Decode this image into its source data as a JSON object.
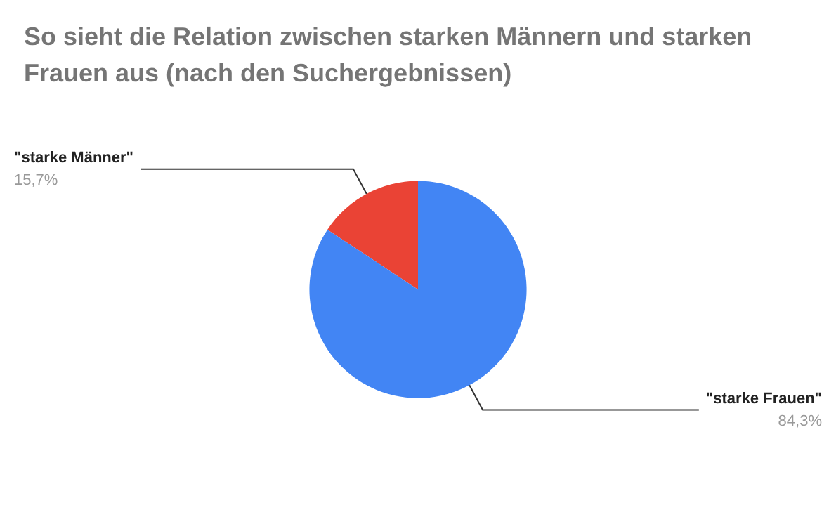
{
  "chart_data": {
    "type": "pie",
    "title": "So sieht die Relation zwischen starken Männern und starken Frauen aus (nach den Suchergebnissen)",
    "categories": [
      "\"starke Männer\"",
      "\"starke Frauen\""
    ],
    "values": [
      15.7,
      84.3
    ],
    "colors": [
      "#ea4335",
      "#4285f4"
    ],
    "value_labels": [
      "15,7%",
      "84,3%"
    ],
    "legend": false
  }
}
